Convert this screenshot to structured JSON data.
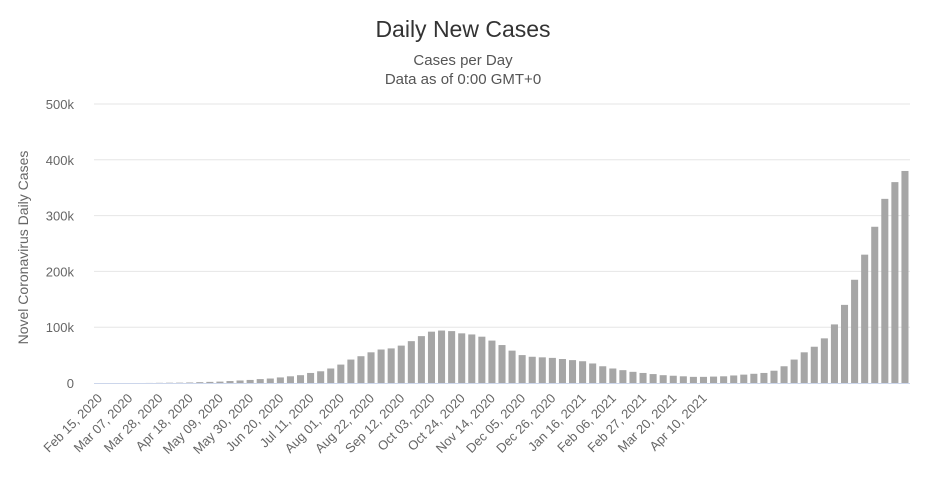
{
  "chart_data": {
    "type": "bar",
    "title": "Daily New Cases",
    "subtitles": [
      "Cases per Day",
      "Data as of 0:00 GMT+0"
    ],
    "xlabel": "",
    "ylabel": "Novel Coronavirus Daily Cases",
    "ylim": [
      0,
      500000
    ],
    "y_ticks": [
      {
        "value": 0,
        "label": "0"
      },
      {
        "value": 100000,
        "label": "100k"
      },
      {
        "value": 200000,
        "label": "200k"
      },
      {
        "value": 300000,
        "label": "300k"
      },
      {
        "value": 400000,
        "label": "400k"
      },
      {
        "value": 500000,
        "label": "500k"
      }
    ],
    "x_tick_labels": [
      "Feb 15, 2020",
      "Mar 07, 2020",
      "Mar 28, 2020",
      "Apr 18, 2020",
      "May 09, 2020",
      "May 30, 2020",
      "Jun 20, 2020",
      "Jul 11, 2020",
      "Aug 01, 2020",
      "Aug 22, 2020",
      "Sep 12, 2020",
      "Oct 03, 2020",
      "Oct 24, 2020",
      "Nov 14, 2020",
      "Dec 05, 2020",
      "Dec 26, 2020",
      "Jan 16, 2021",
      "Feb 06, 2021",
      "Feb 27, 2021",
      "Mar 20, 2021",
      "Apr 10, 2021"
    ],
    "grid": true,
    "legend": "none",
    "bar_color": "#a6a6a6",
    "grid_color": "#e6e6e6",
    "baseline_color": "#ccd6eb",
    "series": [
      {
        "x_start": "Feb 15, 2020",
        "interval": "7 days",
        "values": [
          0,
          0,
          0,
          0,
          0,
          100,
          300,
          500,
          600,
          900,
          1500,
          2000,
          2500,
          3500,
          4500,
          5500,
          7000,
          8000,
          10000,
          12000,
          14000,
          18000,
          21000,
          26000,
          33000,
          42000,
          48000,
          55000,
          60000,
          62000,
          67000,
          75000,
          84000,
          92000,
          94000,
          93000,
          89000,
          87000,
          83000,
          76000,
          68000,
          58000,
          50000,
          47000,
          46000,
          45000,
          43000,
          41000,
          39000,
          35000,
          30000,
          26000,
          23000,
          20000,
          18000,
          16000,
          14000,
          13000,
          12000,
          11000,
          11000,
          11500,
          12000,
          13500,
          15000,
          16500,
          18000,
          22000,
          30000,
          42000,
          55000,
          65000,
          80000,
          105000,
          140000,
          185000,
          230000,
          280000,
          330000,
          360000,
          380000
        ]
      }
    ]
  }
}
